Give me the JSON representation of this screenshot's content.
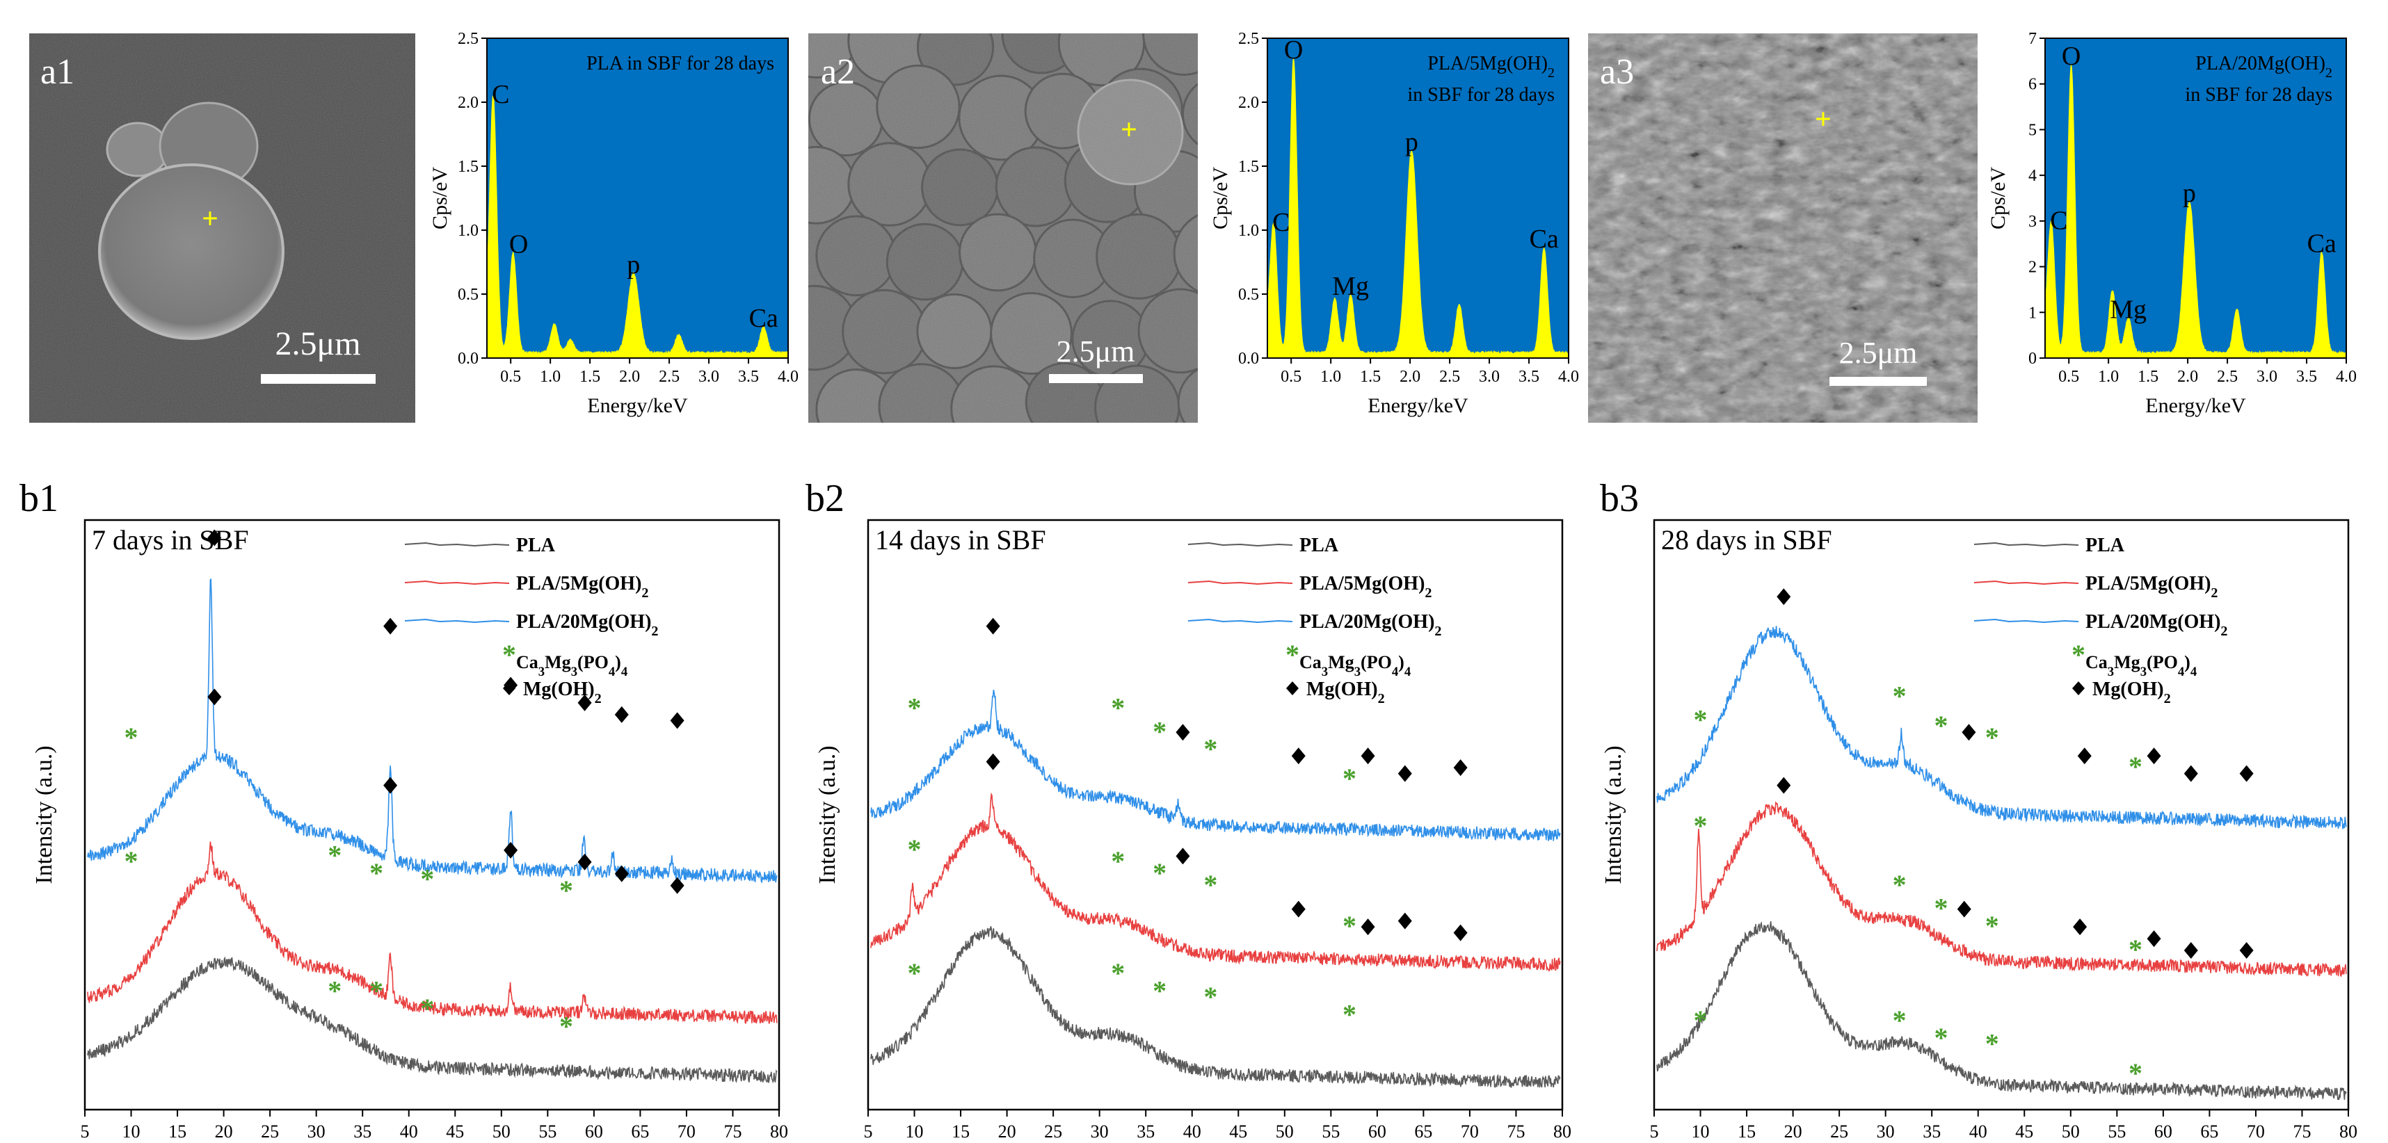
{
  "figure": {
    "sem_panels": [
      {
        "id": "a1",
        "label": "a1",
        "scale_bar": "2.5μm"
      },
      {
        "id": "a2",
        "label": "a2",
        "scale_bar": "2.5μm"
      },
      {
        "id": "a3",
        "label": "a3",
        "scale_bar": "2.5μm"
      }
    ],
    "xrd_panels": [
      {
        "id": "b1",
        "label": "b1"
      },
      {
        "id": "b2",
        "label": "b2"
      },
      {
        "id": "b3",
        "label": "b3"
      }
    ],
    "colors": {
      "eds_background": "#0070c0",
      "eds_spectrum": "#ffff00",
      "pla": "#5a5a5a",
      "pla5": "#e84040",
      "pla20": "#2f8fe8",
      "ca_phase_marker": "#4aa02c",
      "mg_phase_marker": "#000000",
      "sem_crosshair": "#ffff00"
    }
  },
  "chart_data": [
    {
      "id": "eds1",
      "type": "line",
      "title": "PLA in SBF for 28 days",
      "xlabel": "Energy/keV",
      "ylabel": "Cps/eV",
      "xlim": [
        0.2,
        4.0
      ],
      "ylim": [
        0,
        2.5
      ],
      "xticks": [
        "0.5",
        "1.0",
        "1.5",
        "2.0",
        "2.5",
        "3.0",
        "3.5",
        "4.0"
      ],
      "yticks": [
        "0.0",
        "0.5",
        "1.0",
        "1.5",
        "2.0",
        "2.5"
      ],
      "peaks": [
        {
          "label": "C",
          "energy": 0.28,
          "cps": 1.95
        },
        {
          "label": "O",
          "energy": 0.53,
          "cps": 0.78
        },
        {
          "label": "",
          "energy": 1.05,
          "cps": 0.22
        },
        {
          "label": "",
          "energy": 1.25,
          "cps": 0.1
        },
        {
          "label": "p",
          "energy": 2.05,
          "cps": 0.62
        },
        {
          "label": "",
          "energy": 2.62,
          "cps": 0.14
        },
        {
          "label": "Ca",
          "energy": 3.69,
          "cps": 0.2
        }
      ]
    },
    {
      "id": "eds2",
      "type": "line",
      "title": "PLA/5Mg(OH)₂ in SBF for 28 days",
      "xlabel": "Energy/keV",
      "ylabel": "Cps/eV",
      "xlim": [
        0.2,
        4.0
      ],
      "ylim": [
        0,
        2.5
      ],
      "xticks": [
        "0.5",
        "1.0",
        "1.5",
        "2.0",
        "2.5",
        "3.0",
        "3.5",
        "4.0"
      ],
      "yticks": [
        "0.0",
        "0.5",
        "1.0",
        "1.5",
        "2.0",
        "2.5"
      ],
      "peaks": [
        {
          "label": "C",
          "energy": 0.28,
          "cps": 0.95
        },
        {
          "label": "O",
          "energy": 0.53,
          "cps": 2.3
        },
        {
          "label": "",
          "energy": 1.05,
          "cps": 0.42
        },
        {
          "label": "Mg",
          "energy": 1.25,
          "cps": 0.45
        },
        {
          "label": "p",
          "energy": 2.02,
          "cps": 1.58
        },
        {
          "label": "",
          "energy": 2.62,
          "cps": 0.38
        },
        {
          "label": "Ca",
          "energy": 3.69,
          "cps": 0.82
        }
      ]
    },
    {
      "id": "eds3",
      "type": "line",
      "title": "PLA/20Mg(OH)₂ in SBF for 28 days",
      "xlabel": "Energy/keV",
      "ylabel": "Cps/eV",
      "xlim": [
        0.2,
        4.0
      ],
      "ylim": [
        0,
        7
      ],
      "xticks": [
        "0.5",
        "1.0",
        "1.5",
        "2.0",
        "2.5",
        "3.0",
        "3.5",
        "4.0"
      ],
      "yticks": [
        "0",
        "1",
        "2",
        "3",
        "4",
        "5",
        "6",
        "7"
      ],
      "peaks": [
        {
          "label": "C",
          "energy": 0.28,
          "cps": 2.7
        },
        {
          "label": "O",
          "energy": 0.53,
          "cps": 6.3
        },
        {
          "label": "",
          "energy": 1.05,
          "cps": 1.35
        },
        {
          "label": "Mg",
          "energy": 1.25,
          "cps": 0.75
        },
        {
          "label": "p",
          "energy": 2.02,
          "cps": 3.3
        },
        {
          "label": "",
          "energy": 2.62,
          "cps": 0.95
        },
        {
          "label": "Ca",
          "energy": 3.69,
          "cps": 2.2
        }
      ]
    },
    {
      "id": "xrd1",
      "type": "line",
      "title": "7 days in SBF",
      "xlabel": "",
      "ylabel": "Intensity (a.u.)",
      "xlim": [
        5,
        80
      ],
      "xticks": [
        "5",
        "10",
        "15",
        "20",
        "25",
        "30",
        "35",
        "40",
        "45",
        "50",
        "55",
        "60",
        "65",
        "70",
        "75",
        "80"
      ],
      "legend": [
        "PLA",
        "PLA/5Mg(OH)₂",
        "PLA/20Mg(OH)₂",
        "Ca₃Mg₃(PO₄)₄",
        "Mg(OH)₂"
      ],
      "series": [
        {
          "name": "PLA",
          "baseline": 0.08,
          "hump_center": 20,
          "hump_height": 0.17,
          "hump_width": 6,
          "sharp_peaks": []
        },
        {
          "name": "PLA/5Mg(OH)₂",
          "baseline": 0.18,
          "hump_center": 19,
          "hump_height": 0.22,
          "hump_width": 5,
          "sharp_peaks": [
            [
              18.6,
              0.05
            ],
            [
              38.0,
              0.07
            ],
            [
              51.0,
              0.04
            ],
            [
              58.9,
              0.03
            ]
          ]
        },
        {
          "name": "PLA/20Mg(OH)₂",
          "baseline": 0.42,
          "hump_center": 19,
          "hump_height": 0.18,
          "hump_width": 5,
          "sharp_peaks": [
            [
              18.6,
              0.3
            ],
            [
              38.0,
              0.16
            ],
            [
              51.0,
              0.1
            ],
            [
              58.9,
              0.05
            ],
            [
              62.0,
              0.03
            ],
            [
              68.4,
              0.02
            ]
          ]
        }
      ],
      "markers": {
        "Ca3Mg3(PO4)4": [
          [
            10,
            0.42
          ],
          [
            32,
            0.2
          ],
          [
            36.5,
            0.2
          ],
          [
            42,
            0.17
          ],
          [
            57,
            0.14
          ],
          [
            10,
            0.63
          ],
          [
            32,
            0.43
          ],
          [
            36.5,
            0.4
          ],
          [
            42,
            0.39
          ],
          [
            57,
            0.37
          ]
        ],
        "Mg(OH)2": [
          [
            19,
            0.97
          ],
          [
            38,
            0.82
          ],
          [
            51,
            0.72
          ],
          [
            59,
            0.69
          ],
          [
            63,
            0.67
          ],
          [
            69,
            0.66
          ],
          [
            19,
            0.7
          ],
          [
            38,
            0.55
          ],
          [
            51,
            0.44
          ],
          [
            59,
            0.42
          ],
          [
            63,
            0.4
          ],
          [
            69,
            0.38
          ]
        ]
      }
    },
    {
      "id": "xrd2",
      "type": "line",
      "title": "14 days in SBF",
      "xlabel": "",
      "ylabel": "Intensity (a.u.)",
      "xlim": [
        5,
        80
      ],
      "xticks": [
        "5",
        "10",
        "15",
        "20",
        "25",
        "30",
        "35",
        "40",
        "45",
        "50",
        "55",
        "60",
        "65",
        "70",
        "75",
        "80"
      ],
      "legend": [
        "PLA",
        "PLA/5Mg(OH)₂",
        "PLA/20Mg(OH)₂",
        "Ca₃Mg₃(PO₄)₄",
        "Mg(OH)₂"
      ],
      "series": [
        {
          "name": "PLA",
          "baseline": 0.07,
          "hump_center": 18,
          "hump_height": 0.23,
          "hump_width": 5,
          "sharp_peaks": []
        },
        {
          "name": "PLA/5Mg(OH)₂",
          "baseline": 0.27,
          "hump_center": 18,
          "hump_height": 0.21,
          "hump_width": 5,
          "sharp_peaks": [
            [
              9.8,
              0.05
            ],
            [
              18.4,
              0.05
            ]
          ]
        },
        {
          "name": "PLA/20Mg(OH)₂",
          "baseline": 0.49,
          "hump_center": 18,
          "hump_height": 0.16,
          "hump_width": 5,
          "sharp_peaks": [
            [
              18.6,
              0.06
            ],
            [
              38.5,
              0.03
            ]
          ]
        }
      ],
      "markers": {
        "Ca3Mg3(PO4)4": [
          [
            10,
            0.23
          ],
          [
            32,
            0.23
          ],
          [
            36.5,
            0.2
          ],
          [
            42,
            0.19
          ],
          [
            57,
            0.16
          ],
          [
            10,
            0.44
          ],
          [
            32,
            0.42
          ],
          [
            36.5,
            0.4
          ],
          [
            42,
            0.38
          ],
          [
            57,
            0.31
          ],
          [
            10,
            0.68
          ],
          [
            32,
            0.68
          ],
          [
            36.5,
            0.64
          ],
          [
            42,
            0.61
          ],
          [
            57,
            0.56
          ]
        ],
        "Mg(OH)2": [
          [
            18.5,
            0.82
          ],
          [
            39,
            0.64
          ],
          [
            51.5,
            0.6
          ],
          [
            59,
            0.6
          ],
          [
            63,
            0.57
          ],
          [
            69,
            0.58
          ],
          [
            18.5,
            0.59
          ],
          [
            39,
            0.43
          ],
          [
            51.5,
            0.34
          ],
          [
            59,
            0.31
          ],
          [
            63,
            0.32
          ],
          [
            69,
            0.3
          ]
        ]
      }
    },
    {
      "id": "xrd3",
      "type": "line",
      "title": "28 days in SBF",
      "xlabel": "",
      "ylabel": "Intensity (a.u.)",
      "xlim": [
        5,
        80
      ],
      "xticks": [
        "5",
        "10",
        "15",
        "20",
        "25",
        "30",
        "35",
        "40",
        "45",
        "50",
        "55",
        "60",
        "65",
        "70",
        "75",
        "80"
      ],
      "legend": [
        "PLA",
        "PLA/5Mg(OH)₂",
        "PLA/20Mg(OH)₂",
        "Ca₃Mg₃(PO₄)₄",
        "Mg(OH)₂"
      ],
      "series": [
        {
          "name": "PLA",
          "baseline": 0.05,
          "hump_center": 17,
          "hump_height": 0.26,
          "hump_width": 5,
          "sharp_peaks": []
        },
        {
          "name": "PLA/5Mg(OH)₂",
          "baseline": 0.26,
          "hump_center": 18,
          "hump_height": 0.25,
          "hump_width": 5,
          "sharp_peaks": [
            [
              9.8,
              0.14
            ]
          ]
        },
        {
          "name": "PLA/20Mg(OH)₂",
          "baseline": 0.51,
          "hump_center": 18,
          "hump_height": 0.3,
          "hump_width": 5,
          "sharp_peaks": [
            [
              31.7,
              0.05
            ]
          ]
        }
      ],
      "markers": {
        "Ca3Mg3(PO4)4": [
          [
            10,
            0.15
          ],
          [
            31.5,
            0.15
          ],
          [
            36,
            0.12
          ],
          [
            41.5,
            0.11
          ],
          [
            57,
            0.06
          ],
          [
            10,
            0.48
          ],
          [
            31.5,
            0.38
          ],
          [
            36,
            0.34
          ],
          [
            41.5,
            0.31
          ],
          [
            57,
            0.27
          ],
          [
            10,
            0.66
          ],
          [
            31.5,
            0.7
          ],
          [
            36,
            0.65
          ],
          [
            41.5,
            0.63
          ],
          [
            57,
            0.58
          ]
        ],
        "Mg(OH)2": [
          [
            19,
            0.87
          ],
          [
            39,
            0.64
          ],
          [
            51.5,
            0.6
          ],
          [
            59,
            0.6
          ],
          [
            63,
            0.57
          ],
          [
            69,
            0.57
          ],
          [
            19,
            0.55
          ],
          [
            38.5,
            0.34
          ],
          [
            51,
            0.31
          ],
          [
            59,
            0.29
          ],
          [
            63,
            0.27
          ],
          [
            69,
            0.27
          ]
        ]
      }
    }
  ]
}
